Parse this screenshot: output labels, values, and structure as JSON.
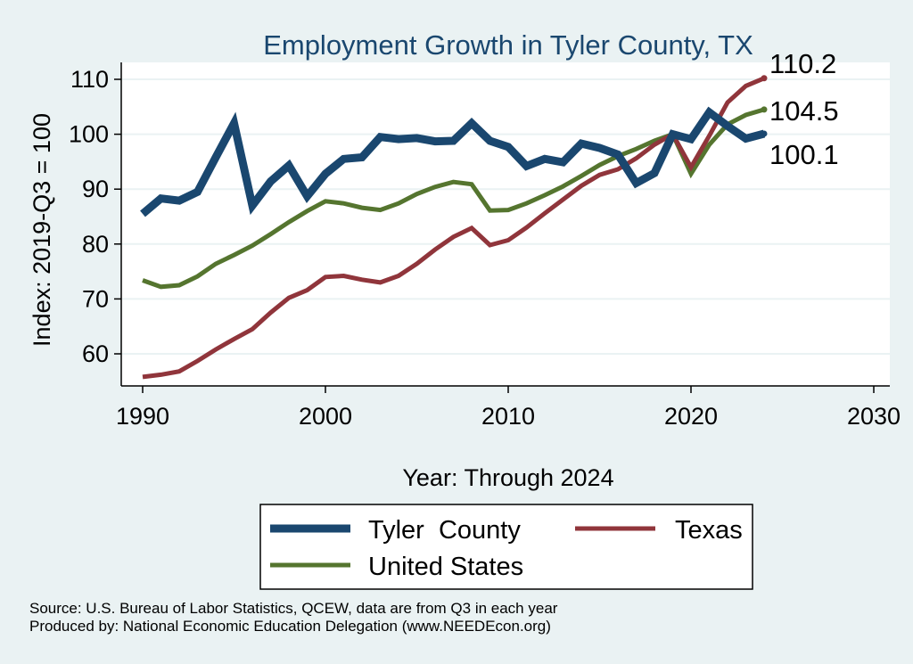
{
  "chart_data": {
    "type": "line",
    "title": "Employment Growth in Tyler County, TX",
    "xlabel": "Year: Through 2024",
    "ylabel": "Index: 2019-Q3 = 100",
    "xlim": [
      1990,
      2030
    ],
    "ylim": [
      53,
      113
    ],
    "xticks": [
      1990,
      2000,
      2010,
      2020,
      2030
    ],
    "yticks": [
      60,
      70,
      80,
      90,
      100,
      110
    ],
    "grid": true,
    "legend_position": "bottom",
    "x": [
      1990,
      1991,
      1992,
      1993,
      1994,
      1995,
      1996,
      1997,
      1998,
      1999,
      2000,
      2001,
      2002,
      2003,
      2004,
      2005,
      2006,
      2007,
      2008,
      2009,
      2010,
      2011,
      2012,
      2013,
      2014,
      2015,
      2016,
      2017,
      2018,
      2019,
      2020,
      2021,
      2022,
      2023,
      2024
    ],
    "series": [
      {
        "name": "Tyler  County",
        "color": "#1a476f",
        "width": "thick",
        "values": [
          85.5,
          88.3,
          87.9,
          89.5,
          95.8,
          102.0,
          87.0,
          91.4,
          94.3,
          88.7,
          92.8,
          95.5,
          95.8,
          99.5,
          99.1,
          99.3,
          98.7,
          98.8,
          102.0,
          98.8,
          97.7,
          94.2,
          95.5,
          94.9,
          98.3,
          97.5,
          96.3,
          91.1,
          92.9,
          100.0,
          99.1,
          104.0,
          101.5,
          99.2,
          100.1
        ],
        "end_label": "100.1"
      },
      {
        "name": "Texas",
        "color": "#90353b",
        "width": "normal",
        "values": [
          55.8,
          56.2,
          56.8,
          58.7,
          60.8,
          62.7,
          64.5,
          67.5,
          70.2,
          71.6,
          74.0,
          74.2,
          73.5,
          73.0,
          74.2,
          76.4,
          79.0,
          81.3,
          82.9,
          79.8,
          80.7,
          83.0,
          85.6,
          88.1,
          90.6,
          92.6,
          93.6,
          95.6,
          98.1,
          100.0,
          94.0,
          99.7,
          105.8,
          108.8,
          110.2
        ],
        "end_label": "110.2"
      },
      {
        "name": "United States",
        "color": "#55752f",
        "width": "normal",
        "values": [
          73.4,
          72.2,
          72.5,
          74.1,
          76.4,
          78.0,
          79.7,
          81.8,
          84.0,
          86.0,
          87.8,
          87.4,
          86.6,
          86.2,
          87.4,
          89.1,
          90.4,
          91.3,
          90.9,
          86.1,
          86.2,
          87.4,
          88.9,
          90.5,
          92.4,
          94.4,
          96.0,
          97.3,
          98.8,
          100.0,
          92.8,
          98.1,
          101.8,
          103.5,
          104.5
        ],
        "end_label": "104.5"
      }
    ]
  },
  "notes": {
    "source": "Source: U.S. Bureau of Labor Statistics, QCEW, data are from Q3 in each year",
    "produced": "Produced by: National Economic Education Delegation (www.NEEDEcon.org)"
  }
}
